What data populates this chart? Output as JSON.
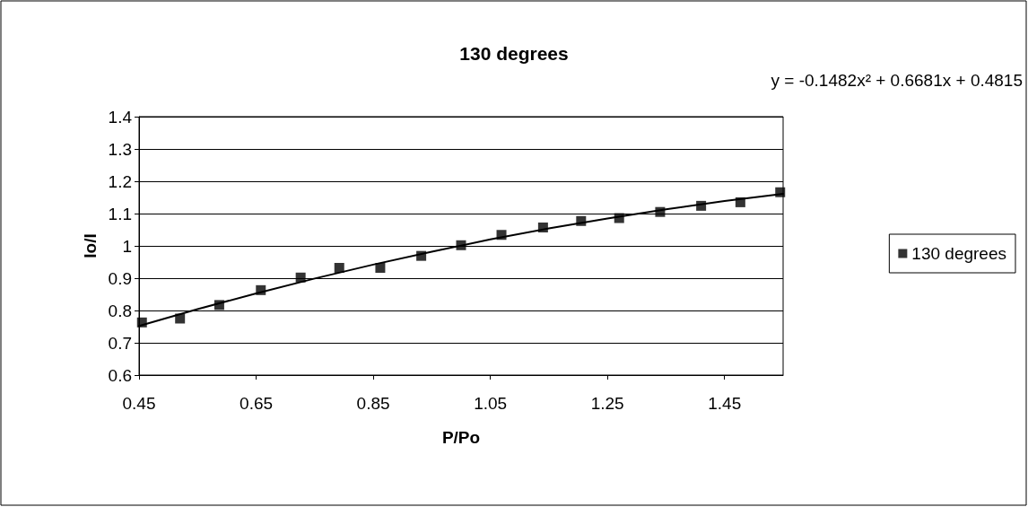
{
  "chart_data": {
    "type": "scatter",
    "title": "130 degrees",
    "xlabel": "P/Po",
    "ylabel": "Io/I",
    "annotations": [
      "y = -0.1482x² + 0.6681x + 0.4815"
    ],
    "xlim": [
      0.45,
      1.55
    ],
    "xticks": [
      0.45,
      0.65,
      0.85,
      1.05,
      1.25,
      1.45
    ],
    "ylim": [
      0.6,
      1.4
    ],
    "yticks": [
      0.6,
      0.7,
      0.8,
      0.9,
      1,
      1.1,
      1.2,
      1.3,
      1.4
    ],
    "grid": "y",
    "legend": "right",
    "marker": "square",
    "series": [
      {
        "name": "130 degrees",
        "color": "#000000",
        "x": [
          0.455,
          0.52,
          0.587,
          0.658,
          0.726,
          0.792,
          0.862,
          0.932,
          1.0,
          1.069,
          1.14,
          1.205,
          1.27,
          1.34,
          1.41,
          1.477,
          1.545
        ],
        "values": [
          0.763,
          0.775,
          0.817,
          0.863,
          0.902,
          0.932,
          0.932,
          0.969,
          1.002,
          1.034,
          1.057,
          1.077,
          1.086,
          1.105,
          1.124,
          1.135,
          1.166
        ]
      },
      {
        "type": "line",
        "color": "#000000",
        "marker": "none",
        "line_style": "solid",
        "x": [
          0.45,
          0.55,
          0.65,
          0.75,
          0.85,
          0.95,
          1.05,
          1.15,
          1.25,
          1.35,
          1.45,
          1.55
        ],
        "values": [
          0.752,
          0.804,
          0.853,
          0.899,
          0.942,
          0.982,
          1.02,
          1.054,
          1.085,
          1.113,
          1.139,
          1.161
        ]
      }
    ]
  }
}
